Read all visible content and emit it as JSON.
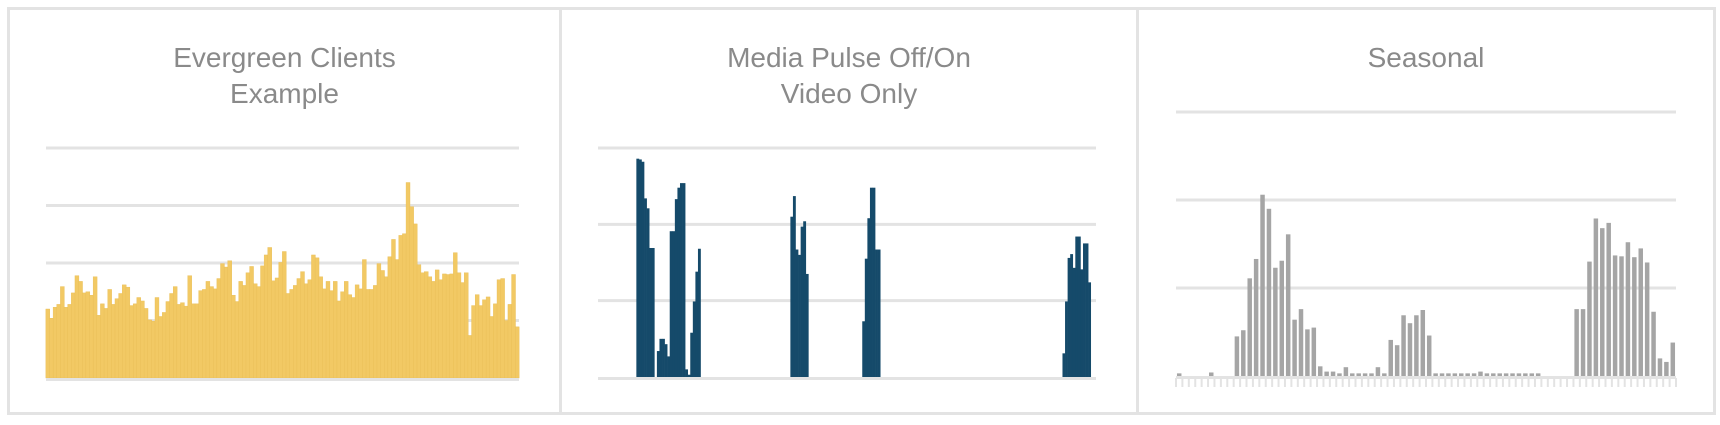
{
  "chart_data": [
    {
      "type": "bar",
      "title_lines": [
        "Evergreen Clients",
        "Example"
      ],
      "color": "#f2c964",
      "grid": true,
      "gridlines": [
        100,
        200,
        300,
        400
      ],
      "ylim": [
        0,
        400
      ],
      "values": [
        120,
        104,
        123,
        128,
        159,
        123,
        128,
        148,
        178,
        168,
        148,
        150,
        144,
        176,
        109,
        129,
        121,
        154,
        128,
        138,
        147,
        162,
        158,
        126,
        129,
        140,
        134,
        121,
        101,
        99,
        140,
        107,
        114,
        133,
        147,
        159,
        128,
        131,
        125,
        178,
        129,
        129,
        152,
        154,
        168,
        159,
        155,
        173,
        199,
        193,
        204,
        144,
        133,
        168,
        161,
        183,
        194,
        164,
        159,
        195,
        214,
        227,
        169,
        174,
        201,
        220,
        147,
        154,
        161,
        173,
        185,
        164,
        171,
        214,
        209,
        176,
        155,
        168,
        152,
        168,
        134,
        150,
        168,
        145,
        140,
        162,
        155,
        206,
        154,
        154,
        161,
        199,
        187,
        176,
        211,
        241,
        206,
        248,
        251,
        340,
        298,
        268,
        197,
        183,
        185,
        176,
        168,
        188,
        171,
        181,
        180,
        181,
        218,
        183,
        166,
        183,
        74,
        126,
        145,
        126,
        136,
        141,
        107,
        129,
        171,
        173,
        100,
        128,
        180,
        89
      ]
    },
    {
      "type": "bar",
      "title_lines": [
        "Media Pulse Off/On",
        "Video Only"
      ],
      "color": "#154a6a",
      "grid": true,
      "gridlines": [
        100,
        200,
        300
      ],
      "ylim": [
        0,
        300
      ],
      "values": [
        0,
        0,
        0,
        0,
        0,
        0,
        0,
        0,
        0,
        0,
        0,
        0,
        0,
        0,
        0,
        286,
        285,
        282,
        234,
        221,
        169,
        169,
        0,
        34,
        50,
        50,
        43,
        27,
        191,
        191,
        233,
        248,
        254,
        254,
        10,
        3,
        58,
        99,
        138,
        168,
        0,
        0,
        0,
        0,
        0,
        0,
        0,
        0,
        0,
        0,
        0,
        0,
        0,
        0,
        0,
        0,
        0,
        0,
        0,
        0,
        0,
        0,
        0,
        0,
        0,
        0,
        0,
        0,
        0,
        0,
        0,
        0,
        0,
        0,
        0,
        210,
        237,
        167,
        160,
        197,
        204,
        135,
        0,
        0,
        0,
        0,
        0,
        0,
        0,
        0,
        0,
        0,
        0,
        0,
        0,
        0,
        0,
        0,
        0,
        0,
        0,
        0,
        0,
        73,
        155,
        208,
        248,
        248,
        167,
        167,
        0,
        0,
        0,
        0,
        0,
        0,
        0,
        0,
        0,
        0,
        0,
        0,
        0,
        0,
        0,
        0,
        0,
        0,
        0,
        0,
        0,
        0,
        0,
        0,
        0,
        0,
        0,
        0,
        0,
        0,
        0,
        0,
        0,
        0,
        0,
        0,
        0,
        0,
        0,
        0,
        0,
        0,
        0,
        0,
        0,
        0,
        0,
        0,
        0,
        0,
        0,
        0,
        0,
        0,
        0,
        0,
        0,
        0,
        0,
        0,
        0,
        0,
        0,
        0,
        0,
        0,
        0,
        0,
        0,
        0,
        0,
        31,
        99,
        156,
        161,
        143,
        184,
        184,
        141,
        175,
        175,
        124,
        0,
        0
      ]
    },
    {
      "type": "bar",
      "title_lines": [
        "Seasonal"
      ],
      "color": "#a5a5a5",
      "grid": true,
      "x_ticks": true,
      "gridlines": [
        100,
        200,
        300
      ],
      "ylim": [
        0,
        300
      ],
      "values": [
        3,
        0,
        0,
        0,
        0,
        4,
        0,
        0,
        0,
        45,
        52,
        111,
        133,
        206,
        190,
        123,
        131,
        161,
        64,
        76,
        53,
        55,
        11,
        5,
        5,
        3,
        10,
        3,
        3,
        3,
        3,
        10,
        3,
        41,
        35,
        69,
        60,
        69,
        75,
        46,
        3,
        3,
        3,
        3,
        3,
        3,
        3,
        5,
        3,
        3,
        3,
        3,
        3,
        3,
        3,
        3,
        3,
        0,
        0,
        0,
        0,
        0,
        76,
        76,
        130,
        179,
        168,
        174,
        137,
        136,
        152,
        135,
        145,
        129,
        73,
        20,
        16,
        38
      ]
    }
  ],
  "colors": {
    "grid": "#e3e3e3",
    "title": "#8a8a8a",
    "border": "#e3e3e3"
  }
}
